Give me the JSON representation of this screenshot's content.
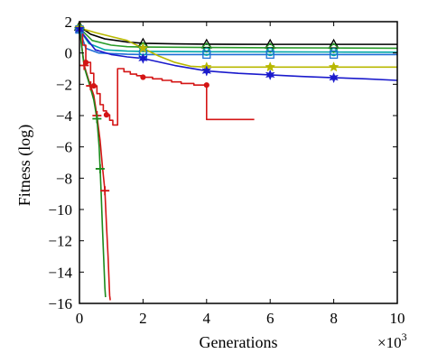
{
  "chart_data": {
    "type": "line",
    "title": "",
    "xlabel": "Generations",
    "ylabel": "Fitness (log)",
    "x_multiplier_label": "×10",
    "x_multiplier_exp": "3",
    "xlim": [
      0,
      10
    ],
    "ylim": [
      -16,
      2
    ],
    "x_ticks": [
      "0",
      "2",
      "4",
      "6",
      "8",
      "10"
    ],
    "y_ticks": [
      "2",
      "0",
      "−2",
      "−4",
      "−6",
      "−8",
      "−10",
      "−12",
      "−14",
      "−16"
    ],
    "x_tick_values": [
      0,
      2,
      4,
      6,
      8,
      10
    ],
    "y_tick_values": [
      2,
      0,
      -2,
      -4,
      -6,
      -8,
      -10,
      -12,
      -14,
      -16
    ],
    "grid": false,
    "legend": "none",
    "series": [
      {
        "color": "#000000",
        "marker": "triangle",
        "step": false,
        "points": [
          [
            0,
            1.7
          ],
          [
            0.35,
            1.2
          ],
          [
            0.8,
            0.9
          ],
          [
            1.5,
            0.7
          ],
          [
            2,
            0.62
          ],
          [
            3,
            0.58
          ],
          [
            4,
            0.56
          ],
          [
            6,
            0.55
          ],
          [
            8,
            0.55
          ],
          [
            10,
            0.55
          ]
        ],
        "markers_at": [
          0,
          2,
          4,
          6,
          8
        ]
      },
      {
        "color": "#2a9d2a",
        "marker": "diamond",
        "step": false,
        "points": [
          [
            0,
            1.6
          ],
          [
            0.4,
            0.8
          ],
          [
            1,
            0.5
          ],
          [
            1.5,
            0.4
          ],
          [
            2,
            0.38
          ],
          [
            4,
            0.35
          ],
          [
            6,
            0.33
          ],
          [
            8,
            0.32
          ],
          [
            10,
            0.3
          ]
        ],
        "markers_at": [
          0,
          2,
          4,
          6,
          8
        ]
      },
      {
        "color": "#00a6a6",
        "marker": "circle",
        "step": false,
        "points": [
          [
            0,
            1.5
          ],
          [
            0.3,
            0.6
          ],
          [
            0.8,
            0.2
          ],
          [
            1.5,
            0.12
          ],
          [
            2,
            0.1
          ],
          [
            4,
            0.08
          ],
          [
            6,
            0.07
          ],
          [
            8,
            0.06
          ],
          [
            10,
            0.05
          ]
        ],
        "markers_at": [
          0,
          2,
          4,
          6,
          8
        ]
      },
      {
        "color": "#1f6fd6",
        "marker": "square",
        "step": false,
        "points": [
          [
            0,
            1.5
          ],
          [
            0.2,
            0.3
          ],
          [
            0.6,
            0.0
          ],
          [
            1.5,
            -0.08
          ],
          [
            2,
            -0.1
          ],
          [
            4,
            -0.1
          ],
          [
            6,
            -0.1
          ],
          [
            8,
            -0.1
          ],
          [
            10,
            -0.1
          ]
        ],
        "markers_at": [
          0,
          2,
          4,
          6,
          8
        ]
      },
      {
        "color": "#b8b800",
        "marker": "star",
        "step": false,
        "points": [
          [
            0,
            1.6
          ],
          [
            0.5,
            1.3
          ],
          [
            1,
            1.05
          ],
          [
            1.5,
            0.8
          ],
          [
            2,
            0.3
          ],
          [
            2.5,
            -0.2
          ],
          [
            3,
            -0.6
          ],
          [
            3.5,
            -0.85
          ],
          [
            4,
            -0.9
          ],
          [
            6,
            -0.9
          ],
          [
            8,
            -0.9
          ],
          [
            10,
            -0.9
          ]
        ],
        "markers_at": [
          0,
          2,
          4,
          6,
          8
        ]
      },
      {
        "color": "#1a1acc",
        "marker": "hexagram",
        "step": false,
        "points": [
          [
            0,
            1.5
          ],
          [
            0.5,
            0.2
          ],
          [
            1,
            -0.1
          ],
          [
            1.5,
            -0.25
          ],
          [
            2,
            -0.35
          ],
          [
            3,
            -0.8
          ],
          [
            4,
            -1.15
          ],
          [
            5,
            -1.3
          ],
          [
            6,
            -1.4
          ],
          [
            7,
            -1.5
          ],
          [
            8,
            -1.58
          ],
          [
            9,
            -1.65
          ],
          [
            10,
            -1.75
          ]
        ],
        "markers_at": [
          0,
          2,
          4,
          6,
          8
        ]
      },
      {
        "color": "#d41515",
        "marker": "dot",
        "step": true,
        "points": [
          [
            0,
            1.5
          ],
          [
            0.1,
            0.5
          ],
          [
            0.2,
            -0.6
          ],
          [
            0.35,
            -1.3
          ],
          [
            0.45,
            -2.1
          ],
          [
            0.55,
            -2.6
          ],
          [
            0.65,
            -3.3
          ],
          [
            0.75,
            -3.7
          ],
          [
            0.85,
            -3.95
          ],
          [
            0.95,
            -4.3
          ],
          [
            1.05,
            -4.6
          ],
          [
            1.2,
            -1.0
          ],
          [
            1.4,
            -1.2
          ],
          [
            1.6,
            -1.35
          ],
          [
            1.8,
            -1.45
          ],
          [
            2,
            -1.55
          ],
          [
            2.3,
            -1.65
          ],
          [
            2.6,
            -1.75
          ],
          [
            2.9,
            -1.85
          ],
          [
            3.2,
            -1.95
          ],
          [
            3.6,
            -2.05
          ],
          [
            4,
            -2.05
          ],
          [
            4,
            -4.25
          ],
          [
            5.5,
            -4.25
          ]
        ],
        "markers_at": [
          0.2,
          0.45,
          0.85,
          2,
          4
        ]
      },
      {
        "color": "#d41515",
        "marker": "plus",
        "step": false,
        "points": [
          [
            0,
            1.6
          ],
          [
            0.15,
            -0.8
          ],
          [
            0.3,
            -1.8
          ],
          [
            0.45,
            -2.7
          ],
          [
            0.55,
            -4.0
          ],
          [
            0.65,
            -5.6
          ],
          [
            0.72,
            -7.2
          ],
          [
            0.8,
            -8.8
          ],
          [
            0.85,
            -11
          ],
          [
            0.9,
            -13
          ],
          [
            0.95,
            -15.5
          ],
          [
            0.97,
            -15.8
          ]
        ],
        "markers_at": [
          0.15,
          0.35,
          0.55,
          0.8
        ]
      },
      {
        "color": "#1b8a1b",
        "marker": "plus",
        "step": false,
        "points": [
          [
            0,
            1.6
          ],
          [
            0.15,
            -0.9
          ],
          [
            0.3,
            -1.9
          ],
          [
            0.45,
            -3.0
          ],
          [
            0.55,
            -4.2
          ],
          [
            0.62,
            -6.0
          ],
          [
            0.68,
            -8.8
          ],
          [
            0.72,
            -11
          ],
          [
            0.76,
            -13
          ],
          [
            0.8,
            -15
          ],
          [
            0.82,
            -15.6
          ]
        ],
        "markers_at": [
          0.55,
          0.65
        ]
      }
    ]
  }
}
